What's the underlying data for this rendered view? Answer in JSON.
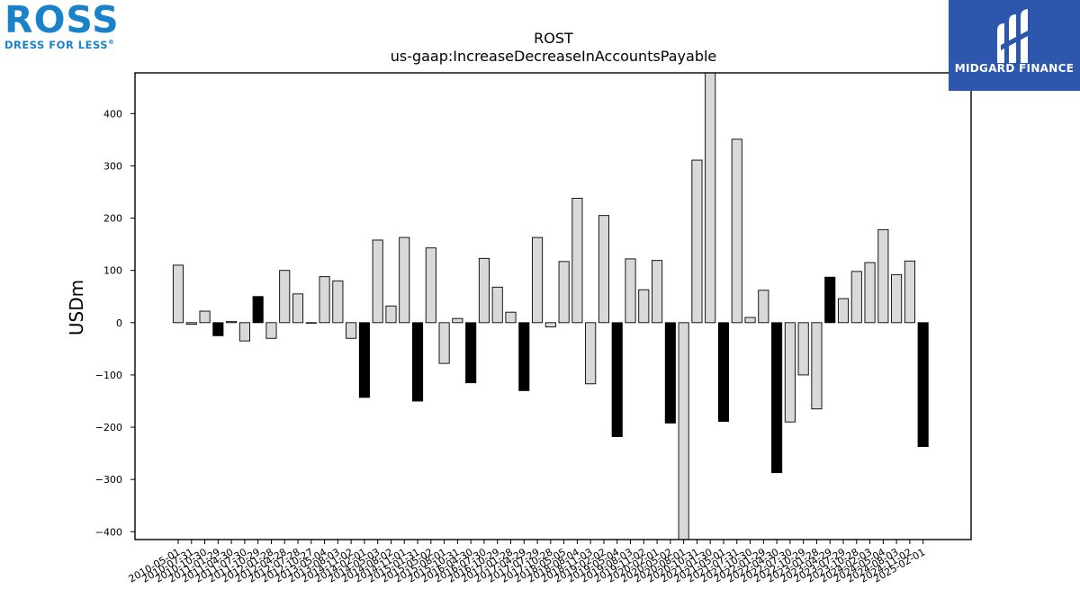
{
  "logos": {
    "company_word": "ROSS",
    "company_tagline": "DRESS FOR LESS",
    "company_registered": "®",
    "publisher_name": "MIDGARD FINANCE",
    "company_color": "#1a82c9",
    "publisher_bg": "#2c57ad"
  },
  "colors": {
    "positive_bar": "#d9d9d9",
    "highlight_bar": "#000000",
    "bar_edge": "#000000"
  },
  "chart_data": {
    "type": "bar",
    "title": "ROST",
    "subtitle": "us-gaap:IncreaseDecreaseInAccountsPayable",
    "xlabel": "",
    "ylabel": "USDm",
    "ylim": [
      -415,
      478
    ],
    "yticks": [
      -400,
      -300,
      -200,
      -100,
      0,
      100,
      200,
      300,
      400
    ],
    "grid": false,
    "highlight_rule": "black bars mark fiscal-year-end quarters",
    "categories": [
      "2010-05-01",
      "2010-07-31",
      "2010-10-30",
      "2011-01-29",
      "2011-04-30",
      "2011-07-30",
      "2011-10-29",
      "2012-01-28",
      "2012-04-28",
      "2012-07-28",
      "2012-10-27",
      "2013-05-04",
      "2013-08-03",
      "2014-11-02",
      "2014-02-01",
      "2014-05-03",
      "2014-08-02",
      "2014-11-01",
      "2015-01-31",
      "2015-05-02",
      "2015-08-01",
      "2015-10-31",
      "2016-04-30",
      "2016-07-30",
      "2016-10-29",
      "2017-01-28",
      "2017-04-29",
      "2017-07-29",
      "2017-10-28",
      "2018-05-05",
      "2018-08-04",
      "2018-11-03",
      "2019-02-02",
      "2019-05-04",
      "2019-08-03",
      "2019-11-02",
      "2020-02-01",
      "2020-05-02",
      "2020-08-01",
      "2020-10-31",
      "2021-01-30",
      "2021-05-01",
      "2021-07-31",
      "2021-10-30",
      "2022-01-29",
      "2022-04-30",
      "2022-07-30",
      "2022-10-29",
      "2023-01-28",
      "2023-04-29",
      "2023-07-29",
      "2023-10-28",
      "2024-02-03",
      "2024-05-04",
      "2024-08-03",
      "2024-11-02",
      "2025-02-01"
    ],
    "values": [
      110,
      -3,
      22,
      -25,
      2,
      -35,
      50,
      -30,
      100,
      55,
      0,
      88,
      80,
      -30,
      -143,
      158,
      32,
      163,
      -150,
      143,
      -78,
      8,
      -115,
      123,
      68,
      20,
      -130,
      163,
      -8,
      117,
      238,
      -117,
      205,
      -218,
      122,
      63,
      119,
      -192,
      -415,
      311,
      478,
      -189,
      351,
      10,
      62,
      -287,
      -190,
      -100,
      -165,
      87,
      46,
      98,
      115,
      178,
      92,
      118,
      -237
    ],
    "highlight": [
      false,
      false,
      false,
      true,
      false,
      false,
      true,
      false,
      false,
      false,
      false,
      false,
      false,
      false,
      true,
      false,
      false,
      false,
      true,
      false,
      false,
      false,
      true,
      false,
      false,
      false,
      true,
      false,
      false,
      false,
      false,
      false,
      false,
      true,
      false,
      false,
      false,
      true,
      false,
      false,
      false,
      true,
      false,
      false,
      false,
      true,
      false,
      false,
      false,
      true,
      false,
      false,
      false,
      false,
      false,
      false,
      true
    ]
  }
}
